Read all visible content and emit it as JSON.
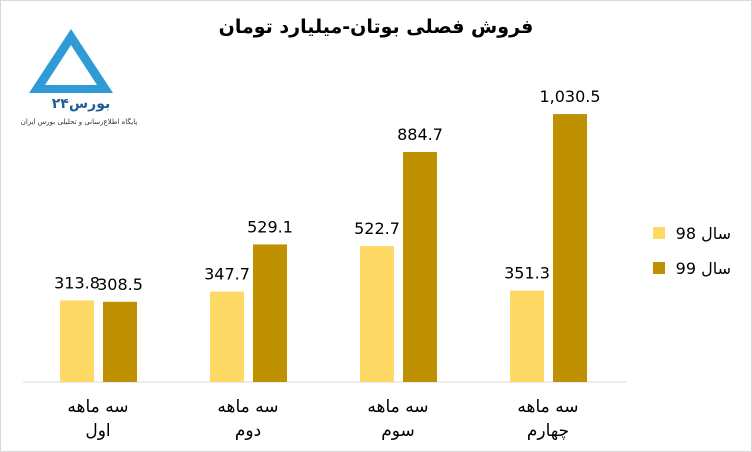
{
  "logo": {
    "name": "بورس۲۴",
    "tagline": "پایگاه اطلاع‌رسانی و تحلیلی بورس ایران"
  },
  "chart_data": {
    "type": "bar",
    "title": "فروش فصلی بوتان-میلیارد تومان",
    "categories": [
      "سه ماهه اول",
      "سه ماهه دوم",
      "سه ماهه سوم",
      "سه ماهه چهارم"
    ],
    "series": [
      {
        "name": "سال 98",
        "color": "#ffd966",
        "values": [
          313.8,
          347.7,
          522.7,
          351.3
        ]
      },
      {
        "name": "سال 99",
        "color": "#bf9000",
        "values": [
          308.5,
          529.1,
          884.7,
          1030.5
        ],
        "value_labels": [
          "308.5",
          "529.1",
          "884.7",
          "1,030.5"
        ]
      }
    ],
    "ylim": [
      0,
      1200
    ],
    "grid": false,
    "legend": "right"
  }
}
